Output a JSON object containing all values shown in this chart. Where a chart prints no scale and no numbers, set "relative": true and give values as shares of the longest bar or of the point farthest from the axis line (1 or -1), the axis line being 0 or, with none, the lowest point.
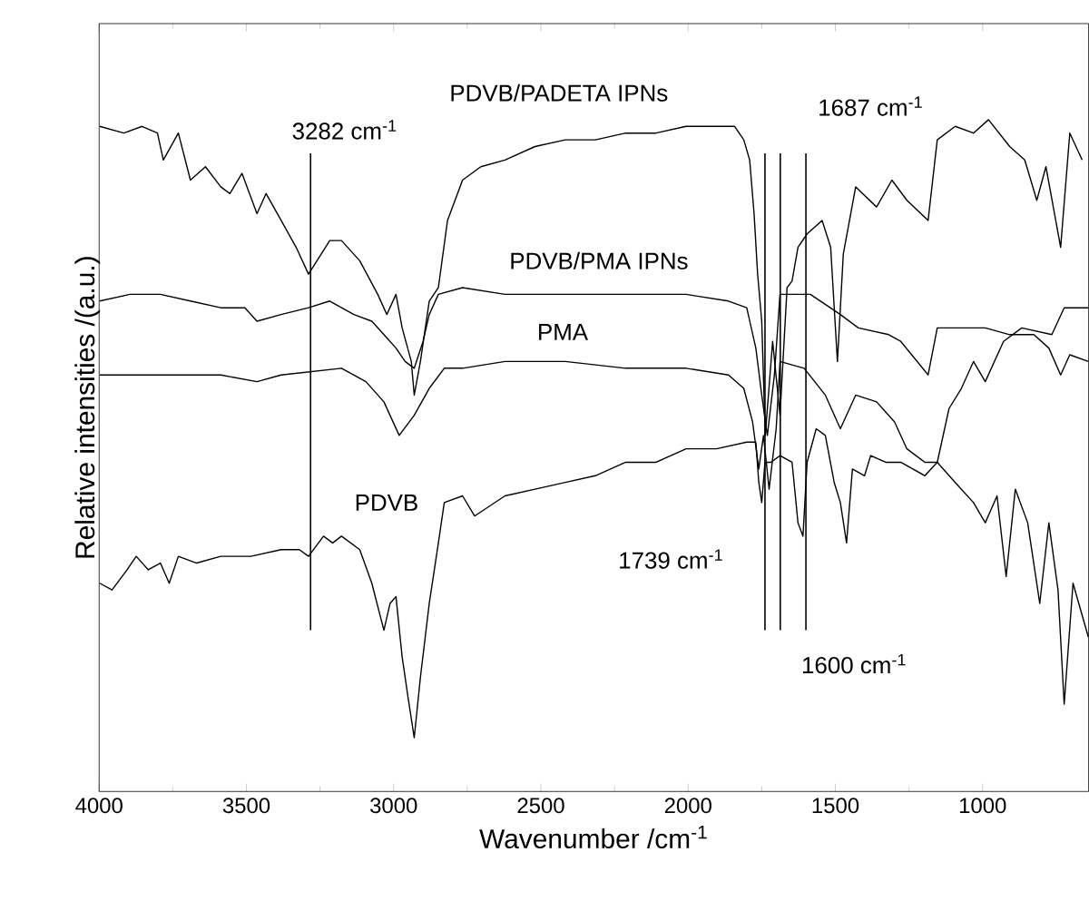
{
  "chart_data": {
    "type": "line",
    "relative": true,
    "xlabel": "Wavenumber /cm$^{-1}$",
    "ylabel": "Relative intensities /(a.u.)",
    "xlim": [
      4000,
      640
    ],
    "xticks": [
      4000,
      3500,
      3000,
      2500,
      2000,
      1500,
      1000
    ],
    "series": [
      {
        "name": "PDVB/PADETA IPNs",
        "color": "#000000",
        "x": [
          3998,
          3916,
          3854,
          3802,
          3782,
          3731,
          3690,
          3639,
          3587,
          3556,
          3515,
          3464,
          3433,
          3382,
          3331,
          3289,
          3217,
          3177,
          3115,
          3054,
          3023,
          2992,
          2971,
          2940,
          2930,
          2909,
          2879,
          2848,
          2817,
          2766,
          2704,
          2622,
          2520,
          2417,
          2315,
          2212,
          2109,
          2007,
          1904,
          1842,
          1811,
          1791,
          1776,
          1764,
          1750,
          1738,
          1713,
          1688,
          1664,
          1647,
          1627,
          1596,
          1545,
          1516,
          1493,
          1473,
          1431,
          1360,
          1308,
          1257,
          1185,
          1154,
          1093,
          1031,
          980,
          908,
          857,
          816,
          785,
          735,
          704,
          662
        ],
        "values": [
          0.99,
          0.98,
          0.99,
          0.98,
          0.94,
          0.98,
          0.91,
          0.93,
          0.9,
          0.89,
          0.92,
          0.86,
          0.89,
          0.85,
          0.81,
          0.77,
          0.82,
          0.82,
          0.79,
          0.74,
          0.71,
          0.74,
          0.69,
          0.64,
          0.59,
          0.64,
          0.73,
          0.75,
          0.85,
          0.91,
          0.93,
          0.94,
          0.96,
          0.97,
          0.97,
          0.98,
          0.98,
          0.99,
          0.99,
          0.99,
          0.97,
          0.94,
          0.86,
          0.77,
          0.7,
          0.53,
          0.67,
          0.56,
          0.75,
          0.76,
          0.81,
          0.83,
          0.85,
          0.81,
          0.64,
          0.8,
          0.9,
          0.87,
          0.91,
          0.88,
          0.85,
          0.97,
          0.99,
          0.98,
          1,
          0.96,
          0.94,
          0.88,
          0.93,
          0.81,
          0.98,
          0.94
        ]
      },
      {
        "name": "PDVB/PMA IPNs",
        "color": "#000000",
        "x": [
          3998,
          3895,
          3792,
          3690,
          3587,
          3505,
          3464,
          3382,
          3289,
          3217,
          3135,
          3074,
          3033,
          2992,
          2961,
          2930,
          2900,
          2879,
          2848,
          2766,
          2622,
          2417,
          2212,
          2007,
          1863,
          1801,
          1770,
          1750,
          1731,
          1707,
          1688,
          1585,
          1483,
          1422,
          1319,
          1278,
          1185,
          1154,
          1072,
          991,
          908,
          826,
          775,
          735,
          704,
          641
        ],
        "values": [
          0.73,
          0.74,
          0.74,
          0.73,
          0.72,
          0.72,
          0.7,
          0.71,
          0.72,
          0.73,
          0.71,
          0.7,
          0.68,
          0.66,
          0.64,
          0.63,
          0.67,
          0.71,
          0.74,
          0.75,
          0.74,
          0.74,
          0.74,
          0.74,
          0.73,
          0.72,
          0.66,
          0.59,
          0.53,
          0.62,
          0.74,
          0.74,
          0.71,
          0.69,
          0.68,
          0.67,
          0.62,
          0.69,
          0.69,
          0.69,
          0.68,
          0.68,
          0.66,
          0.62,
          0.65,
          0.64
        ]
      },
      {
        "name": "PMA",
        "color": "#000000",
        "x": [
          3998,
          3792,
          3587,
          3464,
          3382,
          3177,
          3094,
          3033,
          2981,
          2930,
          2879,
          2828,
          2766,
          2622,
          2417,
          2212,
          2007,
          1863,
          1811,
          1781,
          1760,
          1744,
          1725,
          1701,
          1688,
          1606,
          1534,
          1483,
          1431,
          1360,
          1299,
          1257,
          1196,
          1154,
          1114,
          1072,
          1031,
          991,
          929,
          867,
          765,
          723,
          641
        ],
        "values": [
          0.62,
          0.62,
          0.62,
          0.61,
          0.62,
          0.63,
          0.61,
          0.58,
          0.53,
          0.56,
          0.6,
          0.63,
          0.63,
          0.64,
          0.64,
          0.63,
          0.63,
          0.62,
          0.6,
          0.55,
          0.48,
          0.53,
          0.45,
          0.54,
          0.64,
          0.63,
          0.59,
          0.54,
          0.59,
          0.58,
          0.55,
          0.51,
          0.49,
          0.49,
          0.57,
          0.6,
          0.64,
          0.61,
          0.67,
          0.69,
          0.68,
          0.72,
          0.72
        ]
      },
      {
        "name": "PDVB",
        "color": "#000000",
        "x": [
          3998,
          3956,
          3905,
          3874,
          3833,
          3792,
          3762,
          3731,
          3669,
          3587,
          3485,
          3382,
          3320,
          3289,
          3238,
          3207,
          3177,
          3115,
          3074,
          3033,
          3012,
          2992,
          2971,
          2951,
          2930,
          2909,
          2879,
          2848,
          2828,
          2766,
          2725,
          2622,
          2520,
          2417,
          2315,
          2212,
          2109,
          2007,
          1904,
          1801,
          1770,
          1760,
          1750,
          1739,
          1719,
          1688,
          1647,
          1627,
          1610,
          1596,
          1565,
          1534,
          1504,
          1483,
          1462,
          1442,
          1401,
          1380,
          1329,
          1278,
          1196,
          1154,
          1093,
          1031,
          991,
          951,
          920,
          889,
          847,
          806,
          775,
          744,
          723,
          693,
          641
        ],
        "values": [
          0.31,
          0.3,
          0.33,
          0.35,
          0.33,
          0.34,
          0.31,
          0.35,
          0.34,
          0.35,
          0.35,
          0.36,
          0.36,
          0.35,
          0.38,
          0.37,
          0.38,
          0.36,
          0.31,
          0.24,
          0.28,
          0.29,
          0.2,
          0.14,
          0.08,
          0.17,
          0.28,
          0.37,
          0.43,
          0.44,
          0.41,
          0.44,
          0.45,
          0.46,
          0.47,
          0.49,
          0.49,
          0.51,
          0.51,
          0.52,
          0.52,
          0.46,
          0.43,
          0.49,
          0.49,
          0.5,
          0.49,
          0.4,
          0.38,
          0.49,
          0.54,
          0.53,
          0.46,
          0.43,
          0.37,
          0.48,
          0.47,
          0.5,
          0.49,
          0.49,
          0.47,
          0.49,
          0.46,
          0.43,
          0.4,
          0.44,
          0.32,
          0.45,
          0.4,
          0.28,
          0.4,
          0.3,
          0.13,
          0.31,
          0.23
        ]
      }
    ],
    "ref_lines": [
      {
        "axis": "x",
        "value": 3282,
        "label": "3282 cm$^{-1}$"
      },
      {
        "axis": "x",
        "value": 1739,
        "label": "1739 cm$^{-1}$"
      },
      {
        "axis": "x",
        "value": 1687,
        "label": "1687 cm$^{-1}$"
      },
      {
        "axis": "x",
        "value": 1600,
        "label": "1600 cm$^{-1}$"
      }
    ]
  }
}
